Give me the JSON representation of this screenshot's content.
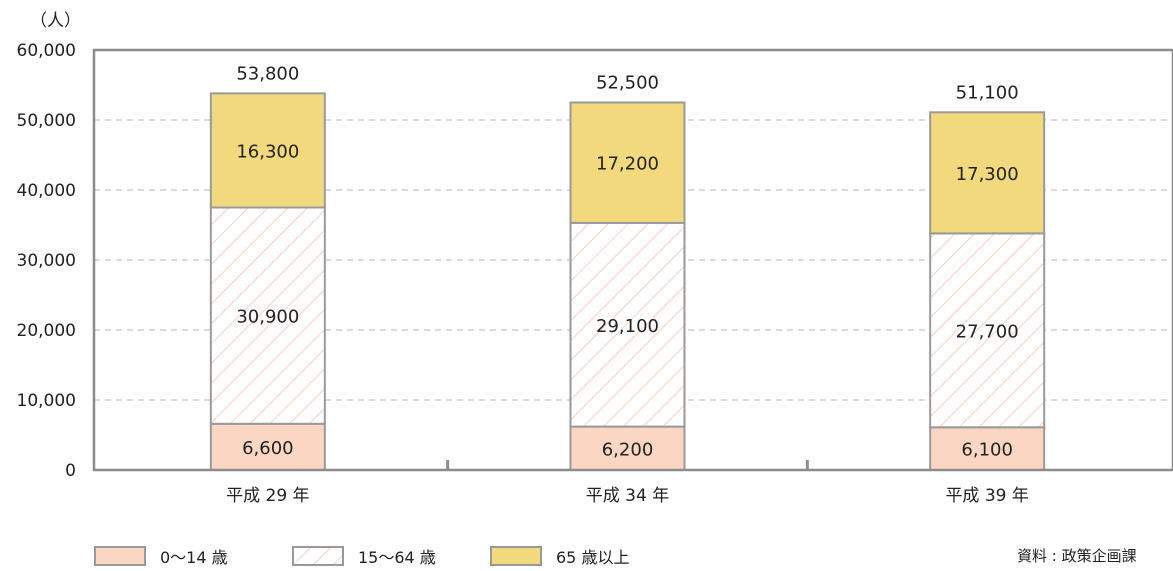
{
  "chart_data": {
    "type": "bar",
    "stacked": true,
    "unit_label": "（人）",
    "categories": [
      "平成 29 年",
      "平成 34 年",
      "平成 39 年"
    ],
    "series": [
      {
        "name": "0〜14 歳",
        "values": [
          6600,
          6200,
          6100
        ],
        "color": "#fbd7c3",
        "pattern": "solid"
      },
      {
        "name": "15〜64 歳",
        "values": [
          30900,
          29100,
          27700
        ],
        "color": "#f6c2ad",
        "pattern": "hatch"
      },
      {
        "name": "65 歳以上",
        "values": [
          16300,
          17200,
          17300
        ],
        "color": "#f2d97d",
        "pattern": "solid"
      }
    ],
    "totals": [
      53800,
      52500,
      51100
    ],
    "data_labels": [
      [
        "6,600",
        "6,200",
        "6,100"
      ],
      [
        "30,900",
        "29,100",
        "27,700"
      ],
      [
        "16,300",
        "17,200",
        "17,300"
      ]
    ],
    "total_labels": [
      "53,800",
      "52,500",
      "51,100"
    ],
    "yticks": [
      0,
      10000,
      20000,
      30000,
      40000,
      50000,
      60000
    ],
    "ytick_labels": [
      "0",
      "10,000",
      "20,000",
      "30,000",
      "40,000",
      "50,000",
      "60,000"
    ],
    "ylim": [
      0,
      60000
    ],
    "grid": "dashed-horizontal",
    "legend_position": "bottom-left"
  },
  "source_note": "資料 : 政策企画課"
}
